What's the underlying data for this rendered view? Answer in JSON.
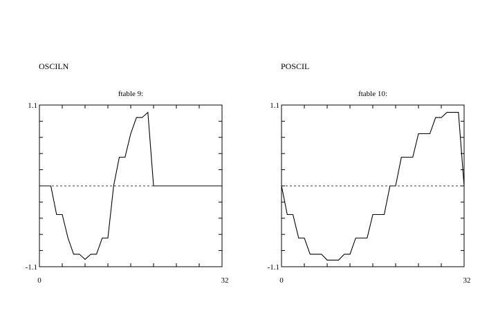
{
  "chart_data": [
    {
      "type": "line",
      "heading": "OSCILN",
      "title": "ftable 9:",
      "xlim": [
        0,
        32
      ],
      "ylim": [
        -1.1,
        1.1
      ],
      "x_tick_labels": [
        "0",
        "32"
      ],
      "y_tick_labels": [
        "1.1",
        "-1.1"
      ],
      "grid": false,
      "reference_line": 0,
      "x": [
        0,
        2,
        3,
        4,
        5,
        6,
        7,
        8,
        9,
        10,
        11,
        12,
        13,
        14,
        15,
        16,
        17,
        18,
        19,
        20,
        21,
        32
      ],
      "y": [
        0,
        0,
        -0.39,
        -0.39,
        -0.71,
        -0.93,
        -0.93,
        -1.0,
        -0.93,
        -0.93,
        -0.71,
        -0.71,
        0,
        0.39,
        0.39,
        0.71,
        0.93,
        0.93,
        1.0,
        0,
        0,
        0
      ]
    },
    {
      "type": "line",
      "heading": "POSCIL",
      "title": "ftable 10:",
      "xlim": [
        0,
        32
      ],
      "ylim": [
        -1.1,
        1.1
      ],
      "x_tick_labels": [
        "0",
        "32"
      ],
      "y_tick_labels": [
        "1.1",
        "-1.1"
      ],
      "grid": false,
      "reference_line": 0,
      "x": [
        0,
        1,
        2,
        3,
        4,
        5,
        6,
        7,
        8,
        9,
        10,
        11,
        12,
        13,
        14,
        15,
        16,
        17,
        18,
        19,
        20,
        21,
        22,
        23,
        24,
        25,
        26,
        27,
        28,
        29,
        30,
        31,
        32
      ],
      "y": [
        0,
        -0.39,
        -0.39,
        -0.71,
        -0.71,
        -0.93,
        -0.93,
        -0.93,
        -1.01,
        -1.01,
        -1.01,
        -0.93,
        -0.93,
        -0.71,
        -0.71,
        -0.71,
        -0.39,
        -0.39,
        -0.39,
        0,
        0,
        0.39,
        0.39,
        0.39,
        0.71,
        0.71,
        0.71,
        0.93,
        0.93,
        1.0,
        1.0,
        1.0,
        0
      ]
    }
  ]
}
